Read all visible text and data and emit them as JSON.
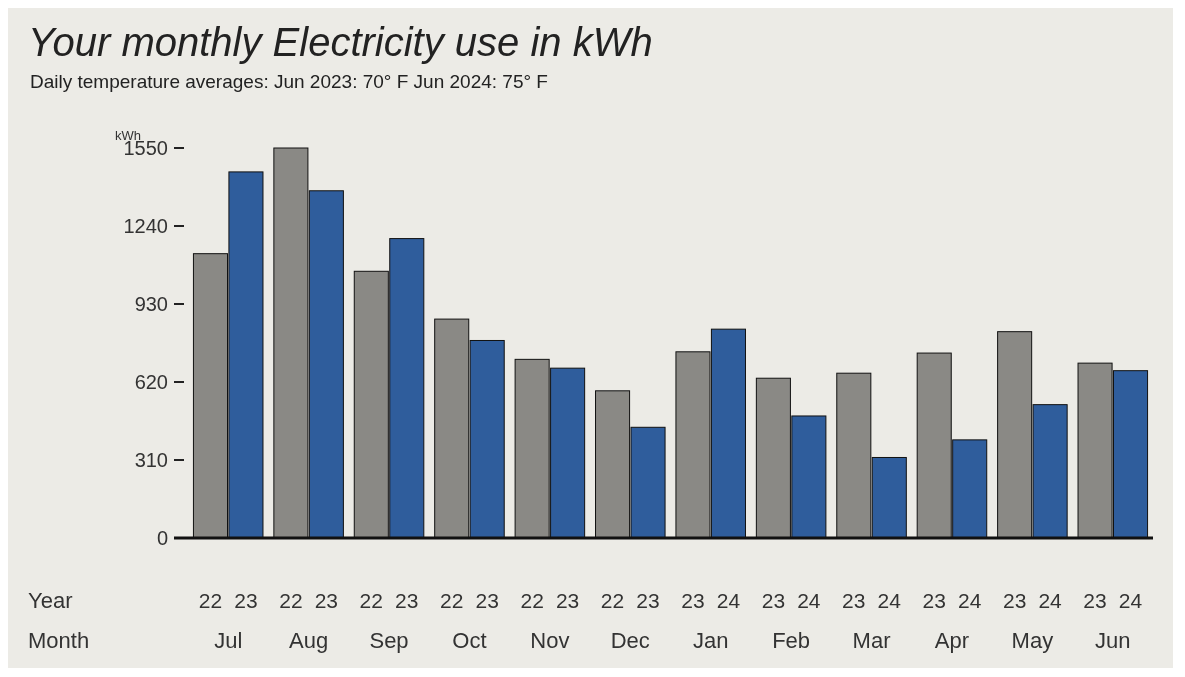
{
  "chart_data": {
    "type": "bar",
    "title": "Your monthly Electricity use in kWh",
    "subtitle": "Daily temperature averages: Jun 2023: 70° F  Jun 2024: 75° F",
    "ylabel": "kWh",
    "categories": [
      "Jul",
      "Aug",
      "Sep",
      "Oct",
      "Nov",
      "Dec",
      "Jan",
      "Feb",
      "Mar",
      "Apr",
      "May",
      "Jun"
    ],
    "series": [
      {
        "color": "#8a8985",
        "values": [
          1130,
          1550,
          1060,
          870,
          710,
          585,
          740,
          635,
          655,
          735,
          820,
          695
        ]
      },
      {
        "color": "#2f5d9c",
        "values": [
          1455,
          1380,
          1190,
          785,
          675,
          440,
          830,
          485,
          320,
          390,
          530,
          665
        ]
      }
    ],
    "ylim": [
      0,
      1550
    ],
    "yticks": [
      0,
      310,
      620,
      930,
      1240,
      1550
    ],
    "grid": false,
    "annotations": [
      "Year",
      "Month",
      "22",
      "23",
      "22",
      "23",
      "22",
      "23",
      "22",
      "23",
      "22",
      "23",
      "22",
      "23",
      "23",
      "24",
      "23",
      "24",
      "23",
      "24",
      "23",
      "24",
      "23",
      "24",
      "23",
      "24"
    ]
  }
}
